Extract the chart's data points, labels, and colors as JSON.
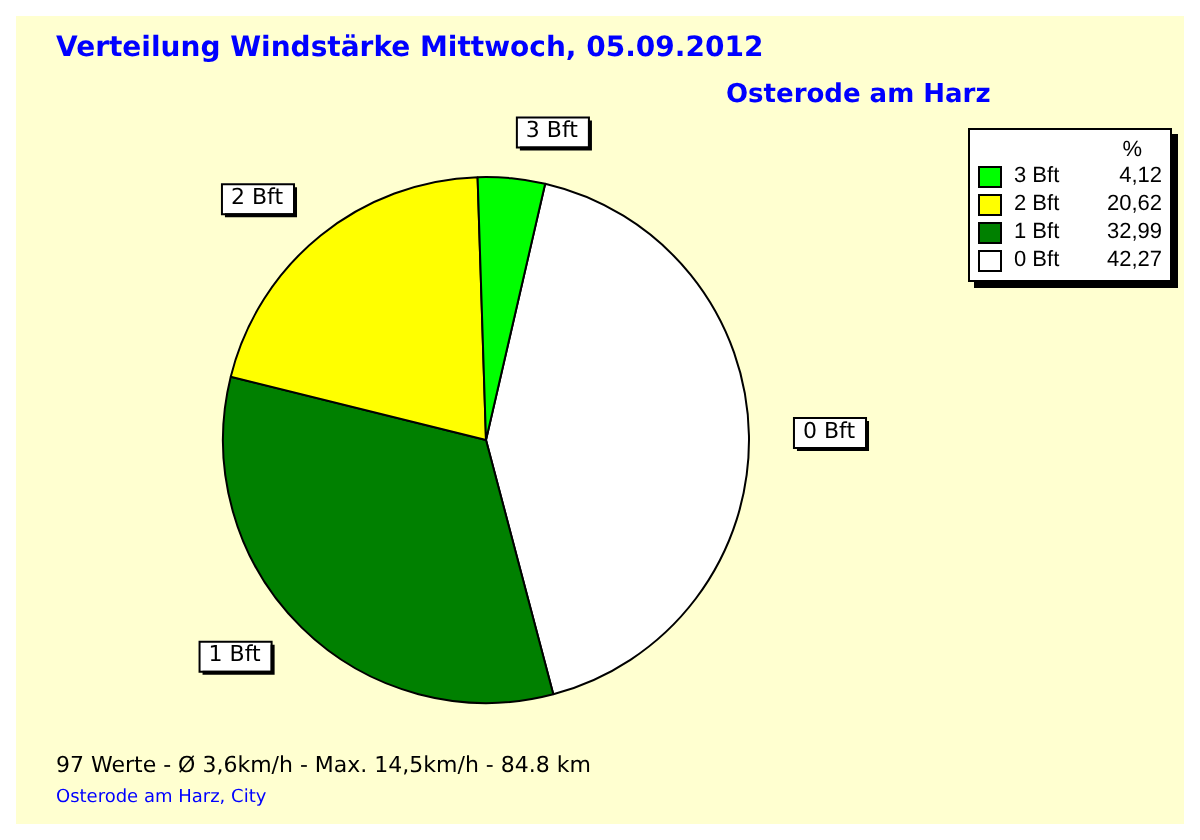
{
  "chart_data": {
    "type": "pie",
    "title": "Verteilung Windstärke  Mittwoch, 05.09.2012",
    "subtitle": "Osterode am Harz",
    "legend_title": "%",
    "categories": [
      "3 Bft",
      "2 Bft",
      "1 Bft",
      "0 Bft"
    ],
    "values": [
      4.12,
      20.62,
      32.99,
      42.27
    ],
    "value_labels": [
      "4,12",
      "20,62",
      "32,99",
      "42,27"
    ],
    "colors": [
      "#00ff00",
      "#ffff00",
      "#008000",
      "#ffffff"
    ],
    "legend": "top right",
    "annotations": [
      "97 Werte   -   Ø 3,6km/h  -  Max. 14,5km/h   -   84.8 km",
      "Osterode am Harz, City"
    ]
  }
}
